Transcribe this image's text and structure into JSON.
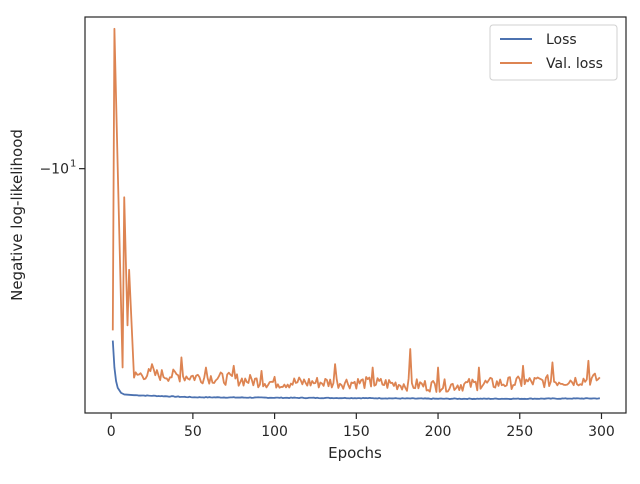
{
  "chart_data": {
    "type": "line",
    "xlabel": "Epochs",
    "ylabel": "Negative log-likelihood",
    "xlim": [
      -16,
      315
    ],
    "ylim": [
      -11.45,
      -9.1
    ],
    "yscale": "symlog",
    "x_ticks": [
      0,
      50,
      100,
      150,
      200,
      250,
      300
    ],
    "y_ticks": [
      {
        "value": -10,
        "label": "−10"
      }
    ],
    "y_tick_exponent": "1",
    "grid": false,
    "legend_position": "top-right",
    "series": [
      {
        "name": "Loss",
        "color": "#4c72b0",
        "anchors": [
          [
            1,
            -11.02
          ],
          [
            2,
            -11.18
          ],
          [
            3,
            -11.26
          ],
          [
            4,
            -11.3
          ],
          [
            6,
            -11.33
          ],
          [
            8,
            -11.34
          ],
          [
            15,
            -11.345
          ],
          [
            30,
            -11.35
          ],
          [
            50,
            -11.357
          ],
          [
            100,
            -11.36
          ],
          [
            150,
            -11.362
          ],
          [
            200,
            -11.366
          ],
          [
            250,
            -11.366
          ],
          [
            299,
            -11.364
          ]
        ],
        "noise": 0.004
      },
      {
        "name": "Val. loss",
        "color": "#dd8452",
        "anchors": [
          [
            1,
            -10.96
          ],
          [
            2,
            -9.17
          ],
          [
            4,
            -9.99
          ],
          [
            7,
            -11.18
          ],
          [
            8,
            -10.17
          ],
          [
            10,
            -10.93
          ],
          [
            11,
            -10.6
          ],
          [
            14,
            -11.24
          ],
          [
            20,
            -11.23
          ],
          [
            60,
            -11.25
          ],
          [
            100,
            -11.28
          ],
          [
            150,
            -11.28
          ],
          [
            200,
            -11.3
          ],
          [
            250,
            -11.28
          ],
          [
            299,
            -11.26
          ]
        ],
        "noise": 0.025,
        "spikes": [
          [
            25,
            -11.16
          ],
          [
            43,
            -11.12
          ],
          [
            58,
            -11.18
          ],
          [
            75,
            -11.17
          ],
          [
            92,
            -11.2
          ],
          [
            137,
            -11.16
          ],
          [
            160,
            -11.18
          ],
          [
            183,
            -11.07
          ],
          [
            200,
            -11.18
          ],
          [
            225,
            -11.18
          ],
          [
            252,
            -11.17
          ],
          [
            270,
            -11.15
          ],
          [
            292,
            -11.14
          ]
        ]
      }
    ]
  }
}
